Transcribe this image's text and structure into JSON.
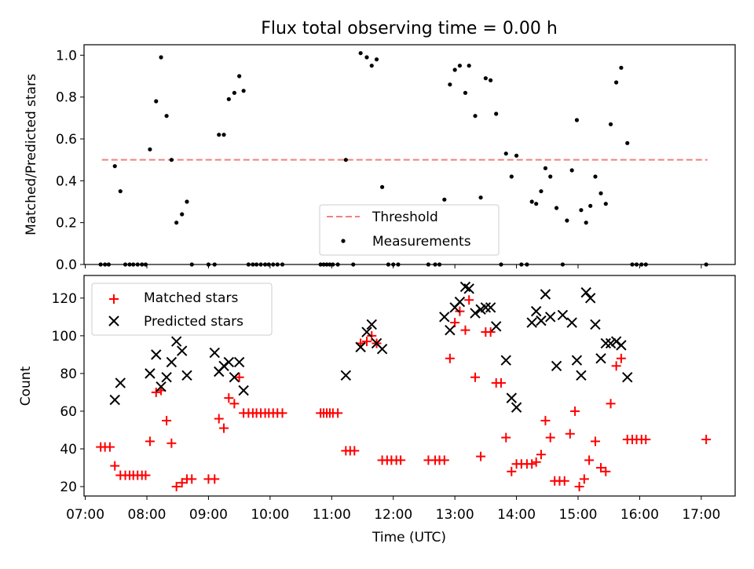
{
  "title": "Flux total observing time = 0.00 h",
  "chart_data": [
    {
      "type": "scatter",
      "ylabel": "Matched/Predicted stars",
      "ylim": [
        0,
        1.05
      ],
      "yticks": [
        0.0,
        0.2,
        0.4,
        0.6,
        0.8,
        1.0
      ],
      "ytick_labels": [
        "0.0",
        "0.2",
        "0.4",
        "0.6",
        "0.8",
        "1.0"
      ],
      "legend_position": "bottom-center",
      "threshold": {
        "name": "Threshold",
        "value": 0.5,
        "x_range": [
          7.27,
          17.1
        ],
        "color": "#f08080"
      },
      "series": [
        {
          "name": "Measurements",
          "color": "#000000",
          "points": [
            [
              7.25,
              0
            ],
            [
              7.32,
              0
            ],
            [
              7.38,
              0
            ],
            [
              7.48,
              0.47
            ],
            [
              7.57,
              0.35
            ],
            [
              7.65,
              0
            ],
            [
              7.72,
              0
            ],
            [
              7.78,
              0
            ],
            [
              7.85,
              0
            ],
            [
              7.92,
              0
            ],
            [
              7.98,
              0
            ],
            [
              8.05,
              0.55
            ],
            [
              8.15,
              0.78
            ],
            [
              8.23,
              0.99
            ],
            [
              8.32,
              0.71
            ],
            [
              8.4,
              0.5
            ],
            [
              8.48,
              0.2
            ],
            [
              8.57,
              0.24
            ],
            [
              8.65,
              0.3
            ],
            [
              8.73,
              0
            ],
            [
              9.0,
              0
            ],
            [
              9.1,
              0
            ],
            [
              9.17,
              0.62
            ],
            [
              9.25,
              0.62
            ],
            [
              9.33,
              0.79
            ],
            [
              9.42,
              0.82
            ],
            [
              9.5,
              0.9
            ],
            [
              9.57,
              0.83
            ],
            [
              9.65,
              0
            ],
            [
              9.72,
              0
            ],
            [
              9.78,
              0
            ],
            [
              9.85,
              0
            ],
            [
              9.92,
              0
            ],
            [
              9.98,
              0
            ],
            [
              10.05,
              0
            ],
            [
              10.12,
              0
            ],
            [
              10.2,
              0
            ],
            [
              10.82,
              0
            ],
            [
              10.87,
              0
            ],
            [
              10.92,
              0
            ],
            [
              10.97,
              0
            ],
            [
              11.02,
              0
            ],
            [
              11.1,
              0
            ],
            [
              11.23,
              0.5
            ],
            [
              11.35,
              0
            ],
            [
              11.47,
              1.01
            ],
            [
              11.57,
              0.99
            ],
            [
              11.65,
              0.95
            ],
            [
              11.73,
              0.98
            ],
            [
              11.82,
              0.37
            ],
            [
              11.92,
              0
            ],
            [
              12.0,
              0
            ],
            [
              12.08,
              0
            ],
            [
              12.57,
              0
            ],
            [
              12.68,
              0
            ],
            [
              12.75,
              0
            ],
            [
              12.83,
              0.31
            ],
            [
              12.92,
              0.86
            ],
            [
              13.0,
              0.93
            ],
            [
              13.08,
              0.95
            ],
            [
              13.17,
              0.82
            ],
            [
              13.23,
              0.95
            ],
            [
              13.33,
              0.71
            ],
            [
              13.42,
              0.32
            ],
            [
              13.5,
              0.89
            ],
            [
              13.58,
              0.88
            ],
            [
              13.67,
              0.72
            ],
            [
              13.75,
              0
            ],
            [
              13.83,
              0.53
            ],
            [
              13.92,
              0.42
            ],
            [
              14.0,
              0.52
            ],
            [
              14.08,
              0
            ],
            [
              14.17,
              0
            ],
            [
              14.25,
              0.3
            ],
            [
              14.32,
              0.29
            ],
            [
              14.4,
              0.35
            ],
            [
              14.47,
              0.46
            ],
            [
              14.55,
              0.42
            ],
            [
              14.65,
              0.27
            ],
            [
              14.75,
              0
            ],
            [
              14.82,
              0.21
            ],
            [
              14.9,
              0.45
            ],
            [
              14.98,
              0.69
            ],
            [
              15.05,
              0.26
            ],
            [
              15.13,
              0.2
            ],
            [
              15.2,
              0.28
            ],
            [
              15.28,
              0.42
            ],
            [
              15.37,
              0.34
            ],
            [
              15.45,
              0.29
            ],
            [
              15.53,
              0.67
            ],
            [
              15.62,
              0.87
            ],
            [
              15.7,
              0.94
            ],
            [
              15.8,
              0.58
            ],
            [
              15.88,
              0
            ],
            [
              15.95,
              0
            ],
            [
              16.03,
              0
            ],
            [
              16.1,
              0
            ],
            [
              17.08,
              0
            ]
          ]
        }
      ]
    },
    {
      "type": "scatter",
      "xlabel": "Time (UTC)",
      "ylabel": "Count",
      "xlim": [
        6.98,
        17.55
      ],
      "ylim": [
        15,
        132
      ],
      "xticks": [
        7,
        8,
        9,
        10,
        11,
        12,
        13,
        14,
        15,
        16,
        17
      ],
      "xtick_labels": [
        "07:00",
        "08:00",
        "09:00",
        "10:00",
        "11:00",
        "12:00",
        "13:00",
        "14:00",
        "15:00",
        "16:00",
        "17:00"
      ],
      "yticks": [
        20,
        40,
        60,
        80,
        100,
        120
      ],
      "ytick_labels": [
        "20",
        "40",
        "60",
        "80",
        "100",
        "120"
      ],
      "legend_position": "top-left",
      "series": [
        {
          "name": "Matched stars",
          "marker": "plus",
          "color": "#ff0000",
          "points": [
            [
              7.25,
              41
            ],
            [
              7.32,
              41
            ],
            [
              7.4,
              41
            ],
            [
              7.48,
              31
            ],
            [
              7.57,
              26
            ],
            [
              7.65,
              26
            ],
            [
              7.72,
              26
            ],
            [
              7.78,
              26
            ],
            [
              7.85,
              26
            ],
            [
              7.92,
              26
            ],
            [
              7.98,
              26
            ],
            [
              8.05,
              44
            ],
            [
              8.15,
              70
            ],
            [
              8.23,
              71
            ],
            [
              8.32,
              55
            ],
            [
              8.4,
              43
            ],
            [
              8.48,
              20
            ],
            [
              8.57,
              22
            ],
            [
              8.65,
              24
            ],
            [
              8.73,
              24
            ],
            [
              9.0,
              24
            ],
            [
              9.1,
              24
            ],
            [
              9.17,
              56
            ],
            [
              9.25,
              51
            ],
            [
              9.33,
              67
            ],
            [
              9.42,
              64
            ],
            [
              9.5,
              78
            ],
            [
              9.57,
              59
            ],
            [
              9.65,
              59
            ],
            [
              9.72,
              59
            ],
            [
              9.78,
              59
            ],
            [
              9.85,
              59
            ],
            [
              9.92,
              59
            ],
            [
              9.98,
              59
            ],
            [
              10.05,
              59
            ],
            [
              10.12,
              59
            ],
            [
              10.2,
              59
            ],
            [
              10.82,
              59
            ],
            [
              10.87,
              59
            ],
            [
              10.92,
              59
            ],
            [
              10.97,
              59
            ],
            [
              11.02,
              59
            ],
            [
              11.1,
              59
            ],
            [
              11.23,
              39
            ],
            [
              11.3,
              39
            ],
            [
              11.37,
              39
            ],
            [
              11.47,
              96
            ],
            [
              11.57,
              97
            ],
            [
              11.65,
              100
            ],
            [
              11.73,
              96
            ],
            [
              11.82,
              34
            ],
            [
              11.9,
              34
            ],
            [
              11.97,
              34
            ],
            [
              12.05,
              34
            ],
            [
              12.12,
              34
            ],
            [
              12.57,
              34
            ],
            [
              12.68,
              34
            ],
            [
              12.75,
              34
            ],
            [
              12.83,
              34
            ],
            [
              12.92,
              88
            ],
            [
              13.0,
              107
            ],
            [
              13.08,
              113
            ],
            [
              13.17,
              103
            ],
            [
              13.23,
              119
            ],
            [
              13.33,
              78
            ],
            [
              13.42,
              36
            ],
            [
              13.5,
              102
            ],
            [
              13.58,
              102
            ],
            [
              13.67,
              75
            ],
            [
              13.75,
              75
            ],
            [
              13.83,
              46
            ],
            [
              13.92,
              28
            ],
            [
              14.0,
              32
            ],
            [
              14.08,
              32
            ],
            [
              14.17,
              32
            ],
            [
              14.25,
              32
            ],
            [
              14.32,
              33
            ],
            [
              14.4,
              37
            ],
            [
              14.47,
              55
            ],
            [
              14.55,
              46
            ],
            [
              14.62,
              23
            ],
            [
              14.7,
              23
            ],
            [
              14.78,
              23
            ],
            [
              14.87,
              48
            ],
            [
              14.95,
              60
            ],
            [
              15.02,
              20
            ],
            [
              15.1,
              24
            ],
            [
              15.18,
              34
            ],
            [
              15.28,
              44
            ],
            [
              15.37,
              30
            ],
            [
              15.45,
              28
            ],
            [
              15.53,
              64
            ],
            [
              15.62,
              84
            ],
            [
              15.7,
              88
            ],
            [
              15.8,
              45
            ],
            [
              15.88,
              45
            ],
            [
              15.95,
              45
            ],
            [
              16.03,
              45
            ],
            [
              16.1,
              45
            ],
            [
              17.08,
              45
            ]
          ]
        },
        {
          "name": "Predicted stars",
          "marker": "x",
          "color": "#000000",
          "points": [
            [
              7.48,
              66
            ],
            [
              7.57,
              75
            ],
            [
              8.05,
              80
            ],
            [
              8.15,
              90
            ],
            [
              8.23,
              73
            ],
            [
              8.32,
              78
            ],
            [
              8.4,
              86
            ],
            [
              8.48,
              97
            ],
            [
              8.57,
              92
            ],
            [
              8.65,
              79
            ],
            [
              9.1,
              91
            ],
            [
              9.17,
              81
            ],
            [
              9.25,
              84
            ],
            [
              9.33,
              86
            ],
            [
              9.42,
              78
            ],
            [
              9.5,
              86
            ],
            [
              9.57,
              71
            ],
            [
              11.23,
              79
            ],
            [
              11.47,
              94
            ],
            [
              11.57,
              102
            ],
            [
              11.65,
              106
            ],
            [
              11.73,
              96
            ],
            [
              11.82,
              93
            ],
            [
              12.83,
              110
            ],
            [
              12.92,
              103
            ],
            [
              13.0,
              115
            ],
            [
              13.08,
              118
            ],
            [
              13.17,
              126
            ],
            [
              13.23,
              125
            ],
            [
              13.33,
              112
            ],
            [
              13.42,
              114
            ],
            [
              13.5,
              115
            ],
            [
              13.58,
              115
            ],
            [
              13.67,
              105
            ],
            [
              13.83,
              87
            ],
            [
              13.92,
              67
            ],
            [
              14.0,
              62
            ],
            [
              14.25,
              107
            ],
            [
              14.32,
              113
            ],
            [
              14.4,
              108
            ],
            [
              14.47,
              122
            ],
            [
              14.55,
              110
            ],
            [
              14.65,
              84
            ],
            [
              14.75,
              111
            ],
            [
              14.9,
              107
            ],
            [
              14.98,
              87
            ],
            [
              15.05,
              79
            ],
            [
              15.13,
              123
            ],
            [
              15.2,
              120
            ],
            [
              15.28,
              106
            ],
            [
              15.37,
              88
            ],
            [
              15.45,
              96
            ],
            [
              15.53,
              96
            ],
            [
              15.62,
              97
            ],
            [
              15.7,
              95
            ],
            [
              15.8,
              78
            ]
          ]
        }
      ]
    }
  ]
}
